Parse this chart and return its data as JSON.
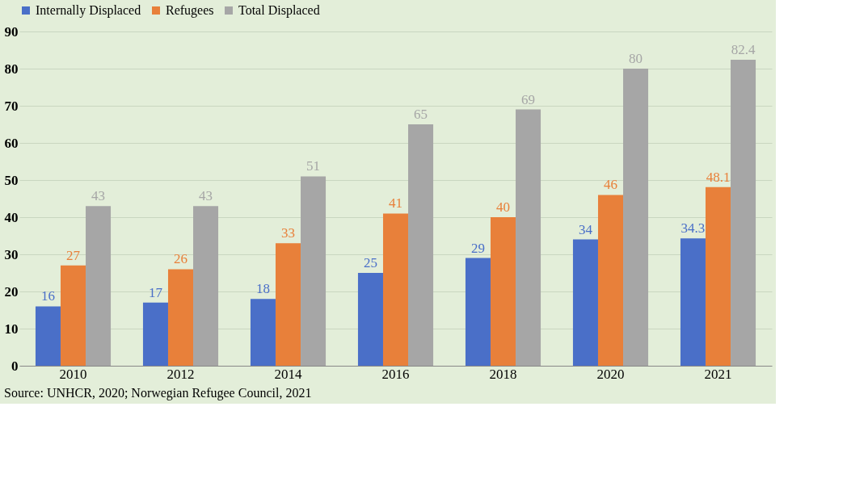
{
  "chart_data": {
    "type": "bar",
    "categories": [
      "2010",
      "2012",
      "2014",
      "2016",
      "2018",
      "2020",
      "2021"
    ],
    "series": [
      {
        "name": "Internally Displaced",
        "color": "#4a6fc8",
        "values": [
          16,
          17,
          18,
          25,
          29,
          34,
          34.3
        ]
      },
      {
        "name": "Refugees",
        "color": "#e8803a",
        "values": [
          27,
          26,
          33,
          41,
          40,
          46,
          48.1
        ]
      },
      {
        "name": "Total Displaced",
        "color": "#a6a6a6",
        "values": [
          43,
          43,
          51,
          65,
          69,
          80,
          82.4
        ]
      }
    ],
    "ylim": [
      0,
      90
    ],
    "yticks": [
      0,
      10,
      20,
      30,
      40,
      50,
      60,
      70,
      80,
      90
    ],
    "grid": "y",
    "legend": "top",
    "data_labels": true,
    "annotations": [
      "Source: UNHCR, 2020; Norwegian Refugee Council, 2021"
    ]
  }
}
